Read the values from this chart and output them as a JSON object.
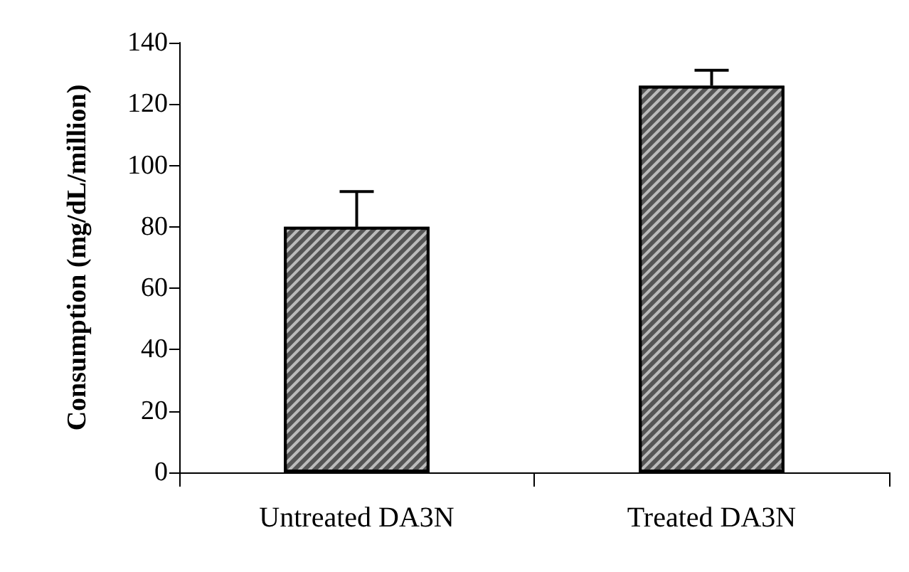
{
  "chart_data": {
    "type": "bar",
    "ylabel": "Consumption (mg/dL/million)",
    "categories": [
      "Untreated DA3N",
      "Treated DA3N"
    ],
    "values": [
      80,
      126
    ],
    "errors": [
      [
        80,
        91.5
      ],
      [
        126,
        131
      ]
    ],
    "color": "#555555",
    "ylim": [
      0,
      140
    ],
    "yticks": [
      0,
      20,
      40,
      60,
      80,
      100,
      120,
      140
    ],
    "grid": false
  }
}
